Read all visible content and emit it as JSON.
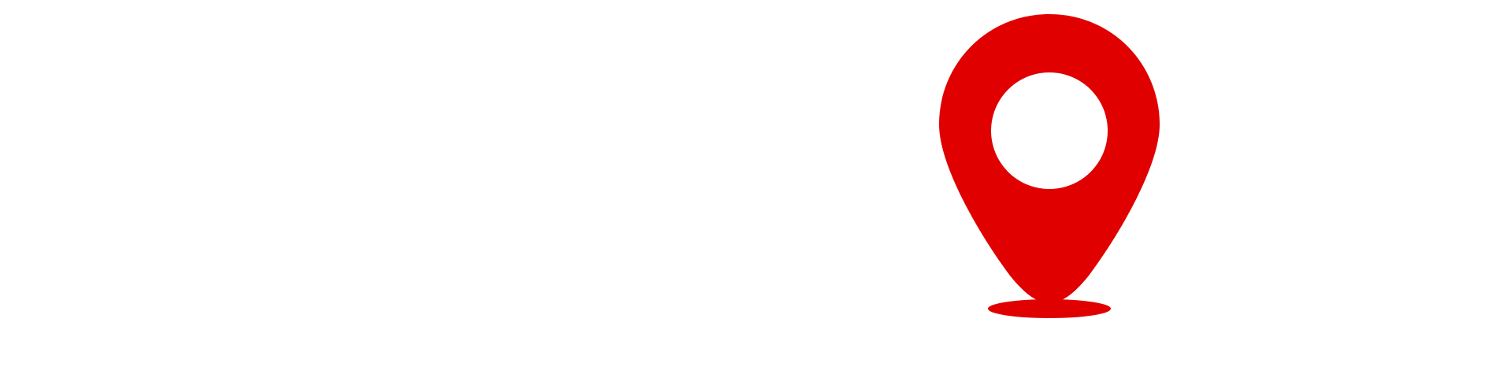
{
  "graphic": {
    "icon": "map-pin-icon",
    "colors": {
      "pin": "#e00000",
      "background": "#ffffff"
    }
  }
}
